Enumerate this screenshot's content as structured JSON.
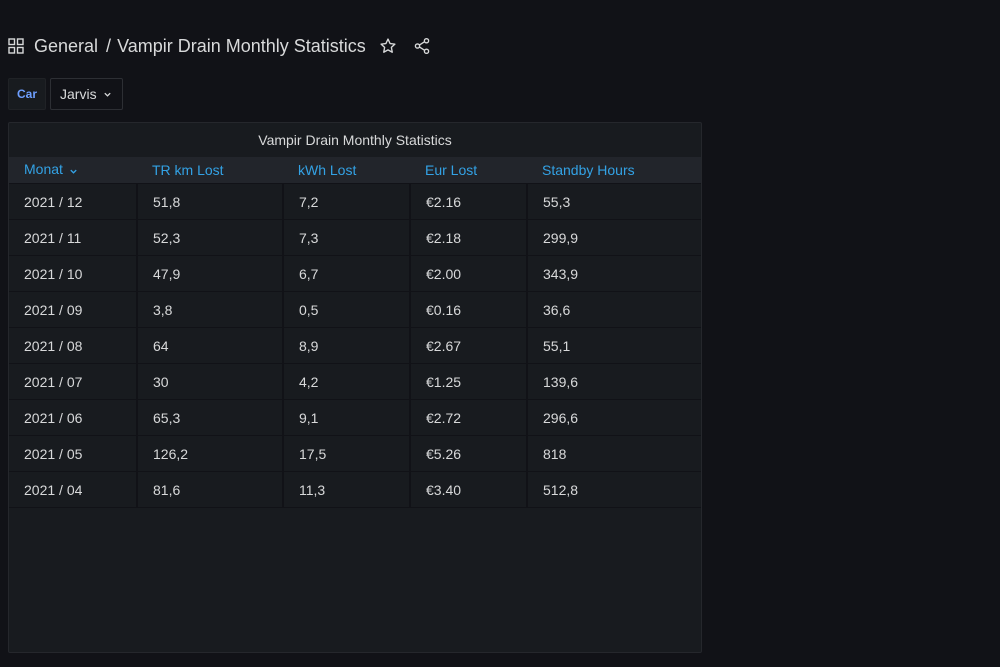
{
  "header": {
    "folder": "General",
    "separator": "/",
    "title": "Vampir Drain Monthly Statistics",
    "icons": [
      "grid-icon",
      "star-icon",
      "share-icon"
    ]
  },
  "variables": {
    "car_label": "Car",
    "car_value": "Jarvis"
  },
  "panel": {
    "title": "Vampir Drain Monthly Statistics",
    "columns": [
      "Monat",
      "TR km Lost",
      "kWh Lost",
      "Eur Lost",
      "Standby Hours"
    ],
    "rows": [
      [
        "2021 / 12",
        "51,8",
        "7,2",
        "€2.16",
        "55,3"
      ],
      [
        "2021 / 11",
        "52,3",
        "7,3",
        "€2.18",
        "299,9"
      ],
      [
        "2021 / 10",
        "47,9",
        "6,7",
        "€2.00",
        "343,9"
      ],
      [
        "2021 / 09",
        "3,8",
        "0,5",
        "€0.16",
        "36,6"
      ],
      [
        "2021 / 08",
        "64",
        "8,9",
        "€2.67",
        "55,1"
      ],
      [
        "2021 / 07",
        "30",
        "4,2",
        "€1.25",
        "139,6"
      ],
      [
        "2021 / 06",
        "65,3",
        "9,1",
        "€2.72",
        "296,6"
      ],
      [
        "2021 / 05",
        "126,2",
        "17,5",
        "€5.26",
        "818"
      ],
      [
        "2021 / 04",
        "81,6",
        "11,3",
        "€3.40",
        "512,8"
      ]
    ]
  },
  "colors": {
    "background": "#111217",
    "panel": "#181b1f",
    "header_text": "#33a2e5",
    "variable_label": "#6e9fff"
  }
}
